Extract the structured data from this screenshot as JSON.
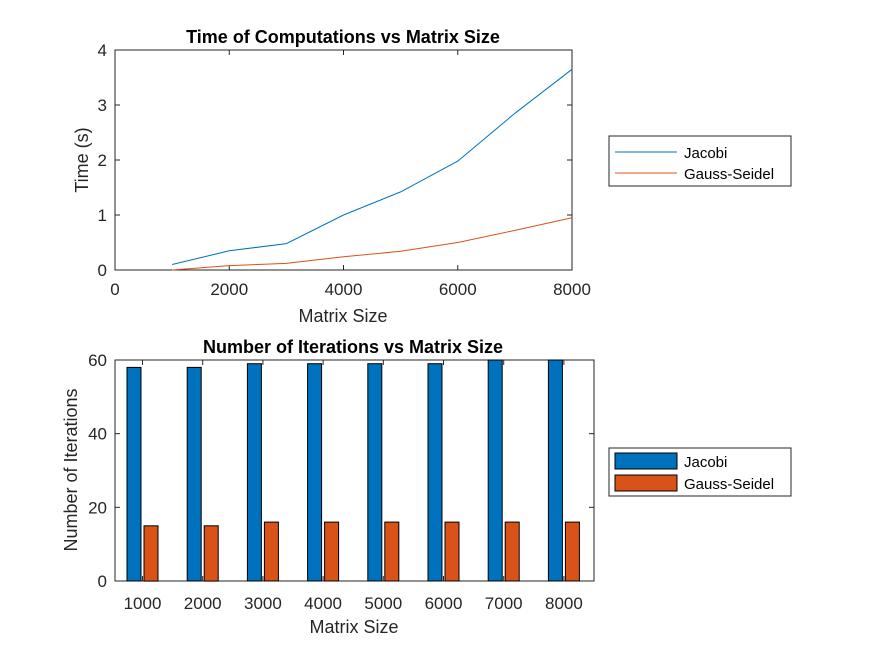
{
  "colors": {
    "jacobi": "#0072BD",
    "gauss_seidel": "#D95319",
    "axis": "#262626",
    "title": "#000000"
  },
  "chart_data": [
    {
      "type": "line",
      "title": "Time of Computations vs Matrix Size",
      "xlabel": "Matrix Size",
      "ylabel": "Time (s)",
      "xlim": [
        0,
        8000
      ],
      "ylim": [
        0,
        4
      ],
      "xticks": [
        "0",
        "2000",
        "4000",
        "6000",
        "8000"
      ],
      "yticks": [
        "0",
        "1",
        "2",
        "3",
        "4"
      ],
      "grid": false,
      "legend_position": "right",
      "x": [
        1000,
        2000,
        3000,
        4000,
        5000,
        6000,
        7000,
        8000
      ],
      "series": [
        {
          "name": "Jacobi",
          "values": [
            0.1,
            0.35,
            0.48,
            1.0,
            1.42,
            1.98,
            2.85,
            3.65
          ]
        },
        {
          "name": "Gauss-Seidel",
          "values": [
            0.0,
            0.08,
            0.12,
            0.24,
            0.34,
            0.5,
            0.72,
            0.95
          ]
        }
      ]
    },
    {
      "type": "bar",
      "title": "Number of Iterations vs Matrix Size",
      "xlabel": "Matrix Size",
      "ylabel": "Number of Iterations",
      "ylim": [
        0,
        60
      ],
      "yticks": [
        "0",
        "20",
        "40",
        "60"
      ],
      "grid": false,
      "legend_position": "right",
      "categories": [
        "1000",
        "2000",
        "3000",
        "4000",
        "5000",
        "6000",
        "7000",
        "8000"
      ],
      "series": [
        {
          "name": "Jacobi",
          "values": [
            58,
            58,
            59,
            59,
            59,
            59,
            60,
            60
          ]
        },
        {
          "name": "Gauss-Seidel",
          "values": [
            15,
            15,
            16,
            16,
            16,
            16,
            16,
            16
          ]
        }
      ]
    }
  ]
}
